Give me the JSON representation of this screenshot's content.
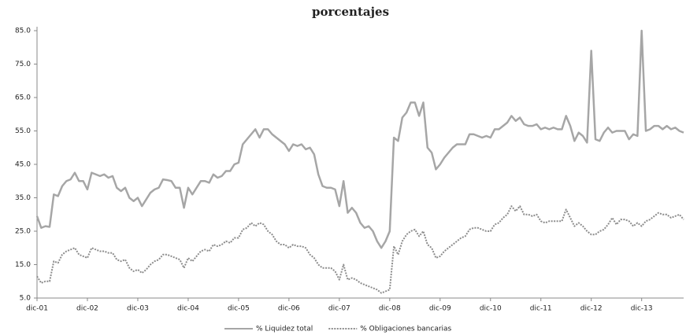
{
  "chart_data": {
    "type": "line",
    "title": "porcentajes",
    "categories": [
      "dic-01",
      null,
      null,
      null,
      null,
      null,
      null,
      null,
      null,
      null,
      null,
      null,
      "dic-02",
      null,
      null,
      null,
      null,
      null,
      null,
      null,
      null,
      null,
      null,
      null,
      "dic-03",
      null,
      null,
      null,
      null,
      null,
      null,
      null,
      null,
      null,
      null,
      null,
      "dic-04",
      null,
      null,
      null,
      null,
      null,
      null,
      null,
      null,
      null,
      null,
      null,
      "dic-05",
      null,
      null,
      null,
      null,
      null,
      null,
      null,
      null,
      null,
      null,
      null,
      "dic-06",
      null,
      null,
      null,
      null,
      null,
      null,
      null,
      null,
      null,
      null,
      null,
      "dic-07",
      null,
      null,
      null,
      null,
      null,
      null,
      null,
      null,
      null,
      null,
      null,
      "dic-08",
      null,
      null,
      null,
      null,
      null,
      null,
      null,
      null,
      null,
      null,
      null,
      "dic-09",
      null,
      null,
      null,
      null,
      null,
      null,
      null,
      null,
      null,
      null,
      null,
      "dic-10",
      null,
      null,
      null,
      null,
      null,
      null,
      null,
      null,
      null,
      null,
      null,
      "dic-11",
      null,
      null,
      null,
      null,
      null,
      null,
      null,
      null,
      null,
      null,
      null,
      "dic-12",
      null,
      null,
      null,
      null,
      null,
      null,
      null,
      null,
      null,
      null,
      null,
      "dic-13",
      null,
      null,
      null,
      null,
      null,
      null,
      null,
      null,
      null,
      null
    ],
    "series": [
      {
        "name": "% Liquidez total",
        "color": "#a6a6a6",
        "dash": false,
        "values": [
          29.5,
          26,
          26.5,
          26.3,
          36,
          35.5,
          38.5,
          40,
          40.5,
          42.5,
          40,
          40,
          37.5,
          42.5,
          42,
          41.5,
          42,
          41,
          41.5,
          38,
          37,
          38,
          35,
          34,
          35,
          32.5,
          34.5,
          36.5,
          37.5,
          38,
          40.5,
          40.3,
          40,
          38,
          38,
          32,
          38,
          36,
          38,
          40,
          40,
          39.5,
          42,
          41,
          41.5,
          43,
          43,
          45,
          45.5,
          51,
          52.5,
          54,
          55.5,
          53,
          55.5,
          55.5,
          54,
          53,
          52,
          51,
          49,
          51,
          50.5,
          51,
          49.5,
          50,
          48,
          42,
          38.5,
          38,
          38,
          37.5,
          32.5,
          40,
          30.5,
          32,
          30.5,
          27.5,
          26,
          26.5,
          25,
          22,
          20,
          22,
          25,
          53,
          52,
          59,
          60.5,
          63.5,
          63.5,
          59.5,
          63.5,
          50,
          48.5,
          43.5,
          45,
          47,
          48.5,
          50,
          51,
          51,
          51,
          54,
          54,
          53.5,
          53,
          53.5,
          53,
          55.5,
          55.5,
          56.5,
          57.5,
          59.5,
          58,
          59,
          57,
          56.5,
          56.5,
          57,
          55.5,
          56,
          55.5,
          56,
          55.5,
          55.5,
          59.5,
          56.5,
          52,
          54.5,
          53.5,
          51.5,
          79,
          52.5,
          52,
          54.5,
          56,
          54.5,
          55,
          55,
          55,
          52.5,
          54,
          53.5,
          85,
          55,
          55.5,
          56.5,
          56.5,
          55.5,
          56.5,
          55.5,
          56,
          55,
          54.5
        ]
      },
      {
        "name": "% Obligaciones bancarias",
        "color": "#8c8c8c",
        "dash": true,
        "values": [
          11.5,
          9.5,
          10,
          10,
          16,
          15.5,
          18,
          19,
          19.5,
          20,
          18,
          17.5,
          17,
          20,
          19.5,
          19,
          19,
          18.5,
          18.5,
          16.5,
          16,
          16.5,
          14,
          13,
          13.5,
          12.5,
          13.5,
          15,
          16,
          16.5,
          18,
          18,
          17.5,
          17,
          16.5,
          14,
          17,
          16,
          17.5,
          19,
          19.5,
          19,
          21,
          20.5,
          21,
          22,
          21.5,
          23,
          23,
          25.5,
          26,
          27.5,
          26.5,
          27.5,
          27,
          25,
          24,
          22,
          21,
          21,
          20,
          21,
          20.5,
          20.5,
          20,
          18,
          17,
          15,
          14,
          14,
          14,
          13,
          10.5,
          15,
          10.5,
          11,
          10.5,
          9.5,
          9,
          8.5,
          8,
          7.5,
          6.5,
          7,
          7.5,
          20.5,
          18,
          22,
          24,
          25,
          25.5,
          23.5,
          25,
          21,
          20,
          17,
          17.5,
          19,
          20,
          21,
          22,
          23,
          23.5,
          25.5,
          26,
          26,
          25.5,
          25,
          25,
          27,
          27.5,
          29,
          30,
          32.5,
          31,
          32.5,
          30,
          30,
          29.5,
          30,
          28,
          27.5,
          28,
          28,
          28,
          28,
          31.5,
          29,
          26.5,
          27.5,
          26.5,
          25,
          24,
          24,
          25,
          25.5,
          27,
          29,
          27,
          28.5,
          28.5,
          28,
          26.5,
          27.5,
          26.5,
          28,
          28.5,
          29.5,
          30.5,
          30,
          30,
          29,
          29.5,
          30,
          28.5
        ]
      }
    ],
    "ylim": [
      5,
      85
    ],
    "yticks": [
      {
        "value": 5,
        "label": "5.0"
      },
      {
        "value": 15,
        "label": "15.0"
      },
      {
        "value": 25,
        "label": "25.0"
      },
      {
        "value": 35,
        "label": "35.0"
      },
      {
        "value": 45,
        "label": "45.0"
      },
      {
        "value": 55,
        "label": "55.0"
      },
      {
        "value": 65,
        "label": "65.0"
      },
      {
        "value": 75,
        "label": "75.0"
      },
      {
        "value": 85,
        "label": "85.0"
      }
    ],
    "grid": false,
    "legend": "bottom"
  }
}
